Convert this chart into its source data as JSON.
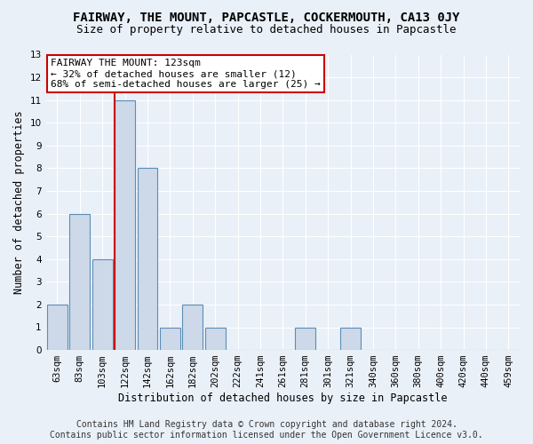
{
  "title": "FAIRWAY, THE MOUNT, PAPCASTLE, COCKERMOUTH, CA13 0JY",
  "subtitle": "Size of property relative to detached houses in Papcastle",
  "xlabel": "Distribution of detached houses by size in Papcastle",
  "ylabel": "Number of detached properties",
  "footer_line1": "Contains HM Land Registry data © Crown copyright and database right 2024.",
  "footer_line2": "Contains public sector information licensed under the Open Government Licence v3.0.",
  "categories": [
    "63sqm",
    "83sqm",
    "103sqm",
    "122sqm",
    "142sqm",
    "162sqm",
    "182sqm",
    "202sqm",
    "222sqm",
    "241sqm",
    "261sqm",
    "281sqm",
    "301sqm",
    "321sqm",
    "340sqm",
    "360sqm",
    "380sqm",
    "400sqm",
    "420sqm",
    "440sqm",
    "459sqm"
  ],
  "values": [
    2,
    6,
    4,
    11,
    8,
    1,
    2,
    1,
    0,
    0,
    0,
    1,
    0,
    1,
    0,
    0,
    0,
    0,
    0,
    0,
    0
  ],
  "bar_color": "#cdd9e8",
  "bar_edge_color": "#5b8db8",
  "subject_line_index": 3,
  "subject_line_color": "#cc0000",
  "annotation_text": "FAIRWAY THE MOUNT: 123sqm\n← 32% of detached houses are smaller (12)\n68% of semi-detached houses are larger (25) →",
  "annotation_box_color": "#ffffff",
  "annotation_box_edge_color": "#cc0000",
  "ylim": [
    0,
    13
  ],
  "yticks": [
    0,
    1,
    2,
    3,
    4,
    5,
    6,
    7,
    8,
    9,
    10,
    11,
    12,
    13
  ],
  "bg_color": "#eaf0f8",
  "plot_bg_color": "#eaf0f8",
  "grid_color": "#ffffff",
  "title_fontsize": 10,
  "subtitle_fontsize": 9,
  "axis_label_fontsize": 8.5,
  "tick_fontsize": 7.5,
  "annotation_fontsize": 8,
  "footer_fontsize": 7
}
